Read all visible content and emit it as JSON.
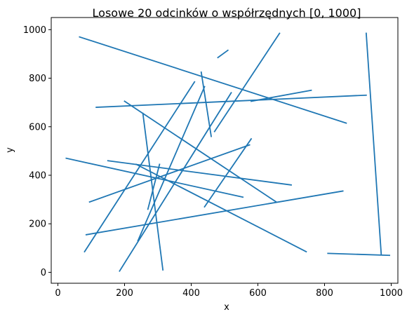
{
  "chart_data": {
    "type": "line",
    "title": "Losowe 20 odcinków o współrzędnych [0, 1000]",
    "xlabel": "x",
    "ylabel": "y",
    "xlim": [
      -20,
      1020
    ],
    "ylim": [
      -45,
      1050
    ],
    "xticks": [
      0,
      200,
      400,
      600,
      800,
      1000
    ],
    "yticks": [
      0,
      200,
      400,
      600,
      800,
      1000
    ],
    "xtick_labels": [
      "0",
      "200",
      "400",
      "600",
      "800",
      "1000"
    ],
    "ytick_labels": [
      "0",
      "200",
      "400",
      "600",
      "800",
      "1000"
    ],
    "grid": false,
    "color": "#1f77b4",
    "segments": [
      {
        "x": [
          65,
          865
        ],
        "y": [
          970,
          615
        ]
      },
      {
        "x": [
          480,
          510
        ],
        "y": [
          885,
          915
        ]
      },
      {
        "x": [
          925,
          970
        ],
        "y": [
          985,
          75
        ]
      },
      {
        "x": [
          810,
          995
        ],
        "y": [
          78,
          70
        ]
      },
      {
        "x": [
          115,
          925
        ],
        "y": [
          680,
          730
        ]
      },
      {
        "x": [
          580,
          760
        ],
        "y": [
          705,
          750
        ]
      },
      {
        "x": [
          430,
          460
        ],
        "y": [
          825,
          560
        ]
      },
      {
        "x": [
          470,
          665
        ],
        "y": [
          580,
          985
        ]
      },
      {
        "x": [
          200,
          655
        ],
        "y": [
          705,
          290
        ]
      },
      {
        "x": [
          255,
          315
        ],
        "y": [
          655,
          10
        ]
      },
      {
        "x": [
          80,
          410
        ],
        "y": [
          85,
          785
        ]
      },
      {
        "x": [
          185,
          520
        ],
        "y": [
          5,
          740
        ]
      },
      {
        "x": [
          25,
          555
        ],
        "y": [
          470,
          310
        ]
      },
      {
        "x": [
          150,
          700
        ],
        "y": [
          460,
          360
        ]
      },
      {
        "x": [
          95,
          575
        ],
        "y": [
          290,
          525
        ]
      },
      {
        "x": [
          440,
          580
        ],
        "y": [
          270,
          550
        ]
      },
      {
        "x": [
          235,
          745
        ],
        "y": [
          445,
          85
        ]
      },
      {
        "x": [
          85,
          855
        ],
        "y": [
          155,
          335
        ]
      },
      {
        "x": [
          240,
          440
        ],
        "y": [
          130,
          765
        ]
      },
      {
        "x": [
          270,
          305
        ],
        "y": [
          260,
          445
        ]
      }
    ]
  }
}
